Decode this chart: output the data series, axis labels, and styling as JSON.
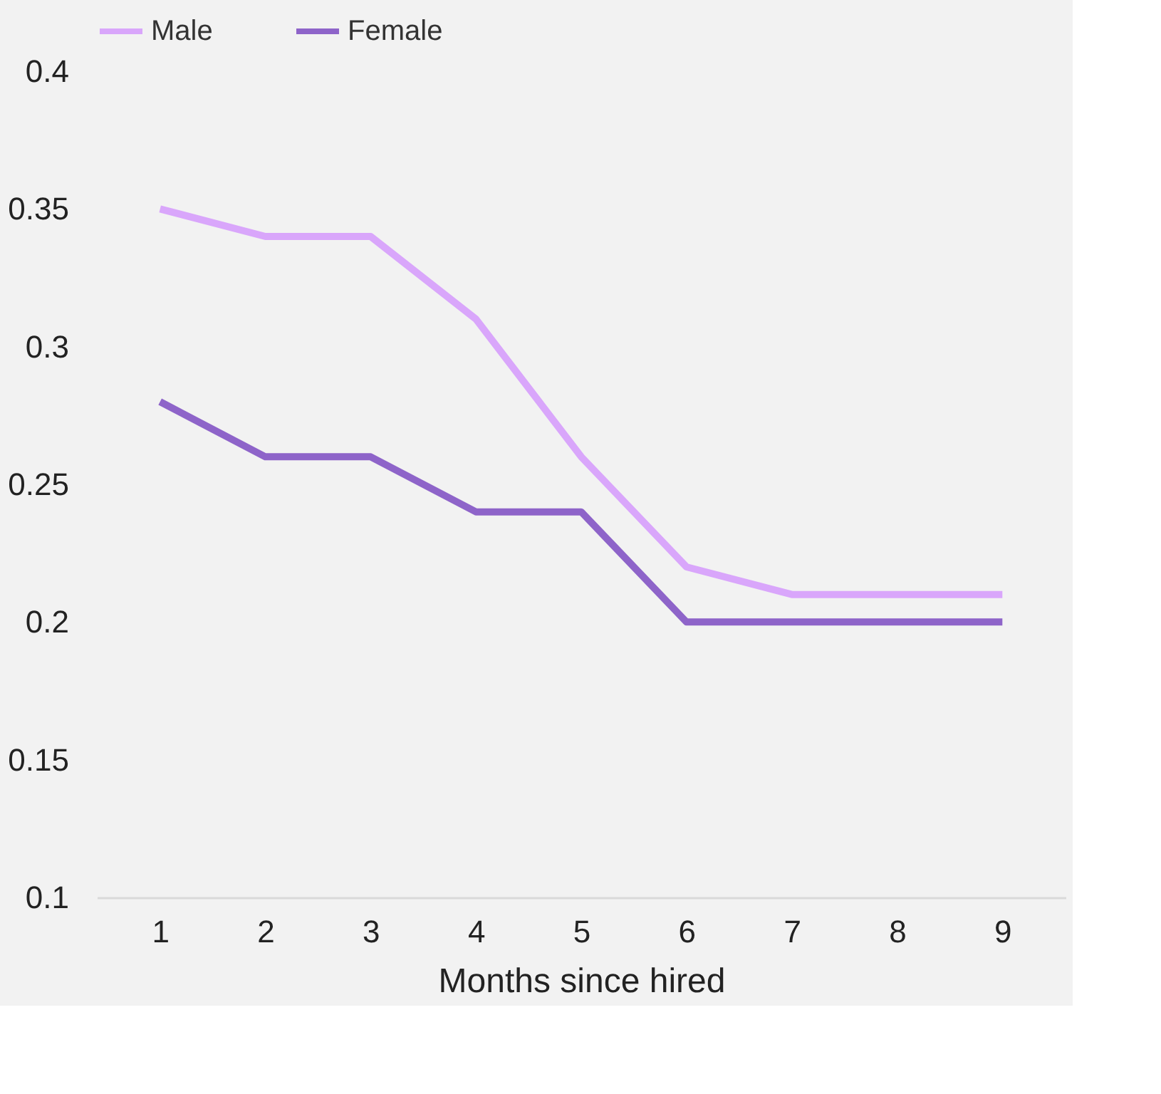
{
  "chart_data": {
    "type": "line",
    "xlabel": "Months since hired",
    "categories": [
      "1",
      "2",
      "3",
      "4",
      "5",
      "6",
      "7",
      "8",
      "9"
    ],
    "series": [
      {
        "name": "Male",
        "color": "#d9a6fb",
        "values": [
          0.35,
          0.34,
          0.34,
          0.31,
          0.26,
          0.22,
          0.21,
          0.21,
          0.21
        ]
      },
      {
        "name": "Female",
        "color": "#8e64c9",
        "values": [
          0.28,
          0.26,
          0.26,
          0.24,
          0.24,
          0.2,
          0.2,
          0.2,
          0.2
        ]
      }
    ],
    "ylim": [
      0.1,
      0.4
    ],
    "yticks": [
      0.1,
      0.15,
      0.2,
      0.25,
      0.3,
      0.35,
      0.4
    ],
    "grid": false,
    "legend": "top",
    "marker": "none",
    "line_style": "solid"
  }
}
